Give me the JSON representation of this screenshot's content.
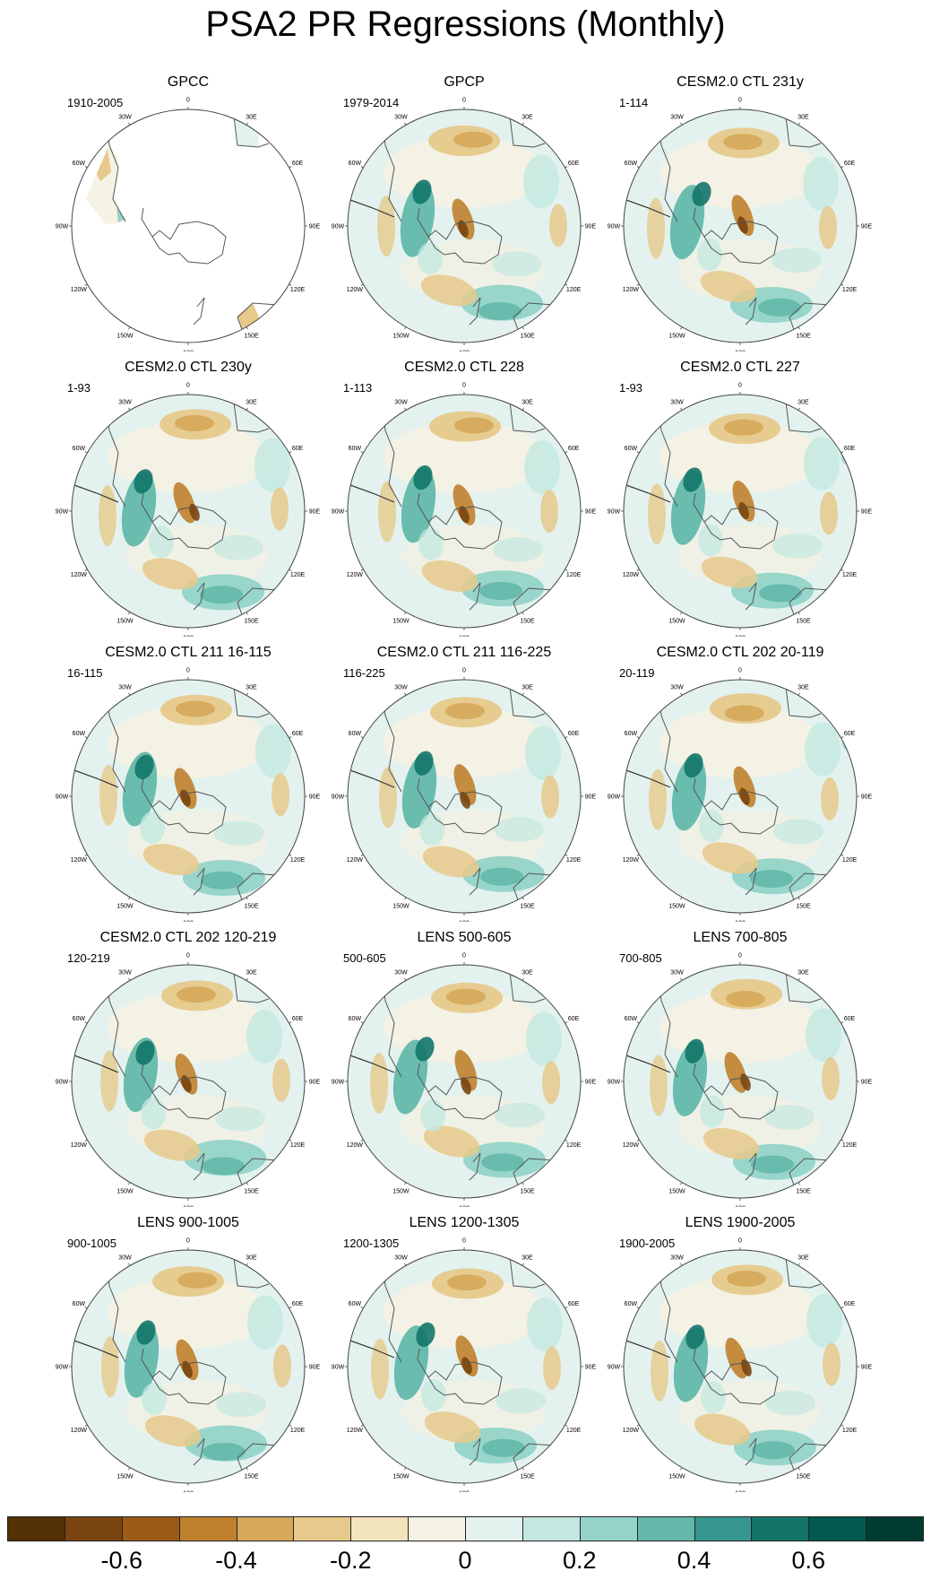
{
  "title": "PSA2 PR Regressions (Monthly)",
  "longitude_labels": [
    "0",
    "30E",
    "60E",
    "90E",
    "120E",
    "150E",
    "180",
    "150W",
    "120W",
    "90W",
    "60W",
    "30W"
  ],
  "panels": [
    {
      "title": "GPCC",
      "period": "1910-2005",
      "coverage": "partial"
    },
    {
      "title": "GPCP",
      "period": "1979-2014",
      "coverage": "full"
    },
    {
      "title": "CESM2.0 CTL 231y",
      "period": "1-114",
      "coverage": "full"
    },
    {
      "title": "CESM2.0 CTL 230y",
      "period": "1-93",
      "coverage": "full"
    },
    {
      "title": "CESM2.0 CTL 228",
      "period": "1-113",
      "coverage": "full"
    },
    {
      "title": "CESM2.0 CTL 227",
      "period": "1-93",
      "coverage": "full"
    },
    {
      "title": "CESM2.0 CTL 211 16-115",
      "period": "16-115",
      "coverage": "full"
    },
    {
      "title": "CESM2.0 CTL 211 116-225",
      "period": "116-225",
      "coverage": "full"
    },
    {
      "title": "CESM2.0 CTL 202 20-119",
      "period": "20-119",
      "coverage": "full"
    },
    {
      "title": "CESM2.0 CTL 202 120-219",
      "period": "120-219",
      "coverage": "full"
    },
    {
      "title": "LENS 500-605",
      "period": "500-605",
      "coverage": "full"
    },
    {
      "title": "LENS 700-805",
      "period": "700-805",
      "coverage": "full"
    },
    {
      "title": "LENS 900-1005",
      "period": "900-1005",
      "coverage": "full"
    },
    {
      "title": "LENS 1200-1305",
      "period": "1200-1305",
      "coverage": "full"
    },
    {
      "title": "LENS 1900-2005",
      "period": "1900-2005",
      "coverage": "full"
    }
  ],
  "colorbar": {
    "colors": [
      "#543005",
      "#7a4510",
      "#9c5b17",
      "#bf812d",
      "#d5a85a",
      "#e6c98b",
      "#f4e4bc",
      "#f5f1e3",
      "#e3f2ef",
      "#c3e8e0",
      "#94d3c7",
      "#63b8aa",
      "#35978f",
      "#137568",
      "#01594f",
      "#003c30"
    ],
    "tick_labels": [
      "-0.6",
      "-0.4",
      "-0.2",
      "0",
      "0.2",
      "0.4",
      "0.6"
    ]
  }
}
